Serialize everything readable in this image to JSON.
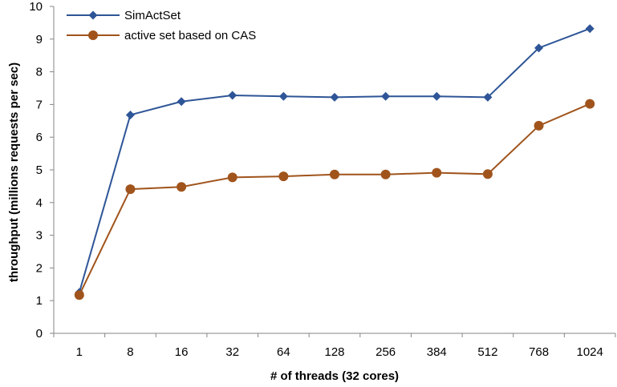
{
  "chart_data": {
    "type": "line",
    "title": "",
    "xlabel": "# of threads (32 cores)",
    "ylabel": "throughput (millions requests per sec)",
    "categories": [
      "1",
      "8",
      "16",
      "32",
      "64",
      "128",
      "256",
      "384",
      "512",
      "768",
      "1024"
    ],
    "ylim": [
      0,
      10
    ],
    "yticks": [
      "0",
      "1",
      "2",
      "3",
      "4",
      "5",
      "6",
      "7",
      "8",
      "9",
      "10"
    ],
    "grid": false,
    "legend_position": "top-left",
    "series": [
      {
        "name": "SimActSet",
        "color": "#2E5597",
        "marker": "diamond",
        "values": [
          1.25,
          6.68,
          7.09,
          7.28,
          7.25,
          7.22,
          7.25,
          7.25,
          7.22,
          8.73,
          9.32
        ]
      },
      {
        "name": "active set based on CAS",
        "color": "#A0541C",
        "marker": "circle",
        "values": [
          1.17,
          4.41,
          4.48,
          4.77,
          4.8,
          4.86,
          4.86,
          4.91,
          4.87,
          6.35,
          7.02
        ]
      }
    ]
  }
}
